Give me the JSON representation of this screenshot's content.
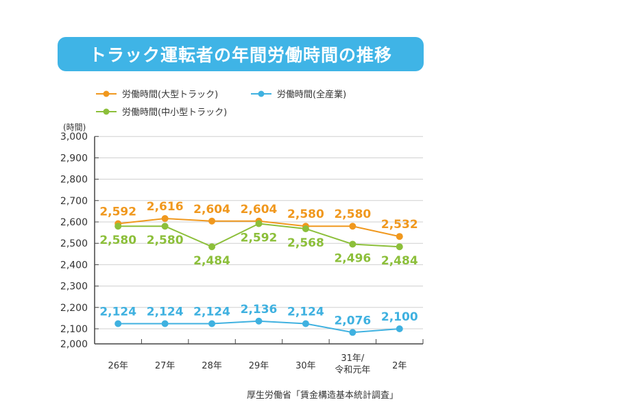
{
  "title": "トラック運転者の年間労働時間の推移",
  "unit_label": "(時間)",
  "source": "厚生労働省「賃金構造基本統計調査」",
  "chart_data": {
    "type": "line",
    "categories": [
      "26年",
      "27年",
      "28年",
      "29年",
      "30年",
      "31年/令和元年",
      "2年"
    ],
    "ylabel": "(時間)",
    "ylim": [
      2000,
      3000
    ],
    "yticks": [
      2000,
      2100,
      2200,
      2300,
      2400,
      2500,
      2600,
      2700,
      2800,
      2900,
      3000
    ],
    "ytick_labels": [
      "2,000",
      "2,100",
      "2,200",
      "2,300",
      "2,400",
      "2,500",
      "2,600",
      "2,700",
      "2,800",
      "2,900",
      "3,000"
    ],
    "grid": true,
    "legend": "top-left",
    "series": [
      {
        "name": "労働時間(大型トラック)",
        "color": "#f0981e",
        "values": [
          2592,
          2616,
          2604,
          2604,
          2580,
          2580,
          2532
        ],
        "labels": [
          "2,592",
          "2,616",
          "2,604",
          "2,604",
          "2,580",
          "2,580",
          "2,532"
        ],
        "label_position": "above"
      },
      {
        "name": "労働時間(全産業)",
        "color": "#3fb1e0",
        "values": [
          2124,
          2124,
          2124,
          2136,
          2124,
          2076,
          2100
        ],
        "labels": [
          "2,124",
          "2,124",
          "2,124",
          "2,136",
          "2,124",
          "2,076",
          "2,100"
        ],
        "label_position": "above"
      },
      {
        "name": "労働時間(中小型トラック)",
        "color": "#8cbf3a",
        "values": [
          2580,
          2580,
          2484,
          2592,
          2568,
          2496,
          2484
        ],
        "labels": [
          "2,580",
          "2,580",
          "2,484",
          "2,592",
          "2,568",
          "2,496",
          "2,484"
        ],
        "label_position": "below"
      }
    ]
  }
}
